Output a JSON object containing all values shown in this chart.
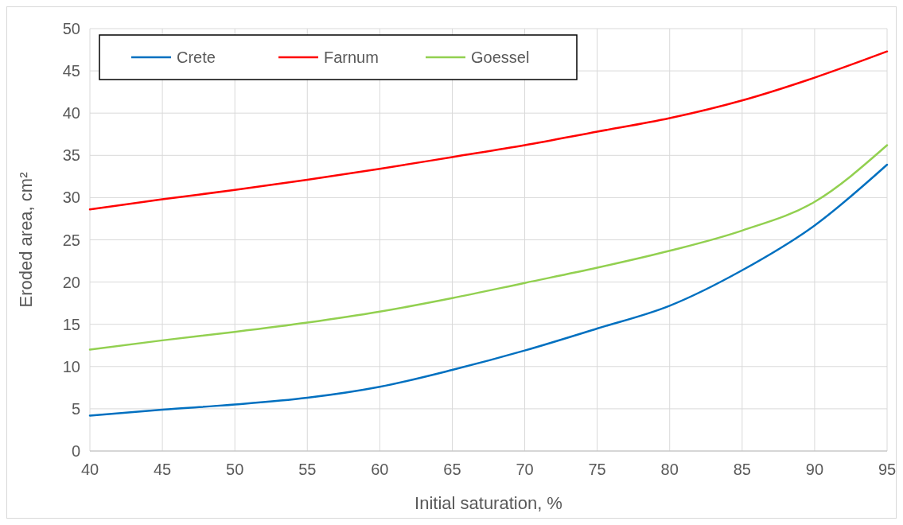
{
  "chart_data": {
    "type": "line",
    "xlabel": "Initial saturation, %",
    "ylabel": "Eroded area, cm²",
    "x": [
      40,
      45,
      50,
      55,
      60,
      65,
      70,
      75,
      80,
      85,
      90,
      95
    ],
    "series": [
      {
        "name": "Crete",
        "color": "#0070c0",
        "values": [
          4.2,
          4.9,
          5.5,
          6.3,
          7.6,
          9.6,
          11.9,
          14.5,
          17.2,
          21.4,
          26.7,
          33.9
        ]
      },
      {
        "name": "Farnum",
        "color": "#ff0000",
        "values": [
          28.6,
          29.8,
          30.9,
          32.1,
          33.4,
          34.8,
          36.2,
          37.8,
          39.4,
          41.5,
          44.2,
          47.3
        ]
      },
      {
        "name": "Goessel",
        "color": "#92d050",
        "values": [
          12.0,
          13.1,
          14.1,
          15.2,
          16.5,
          18.1,
          19.9,
          21.7,
          23.7,
          26.1,
          29.5,
          36.2
        ]
      }
    ],
    "xlim": [
      40,
      95
    ],
    "xticks": [
      40,
      45,
      50,
      55,
      60,
      65,
      70,
      75,
      80,
      85,
      90,
      95
    ],
    "ylim": [
      0,
      50
    ],
    "yticks": [
      0,
      5,
      10,
      15,
      20,
      25,
      30,
      35,
      40,
      45,
      50
    ],
    "grid": true,
    "legend": "top left",
    "marker": "none",
    "line_style": "solid"
  }
}
